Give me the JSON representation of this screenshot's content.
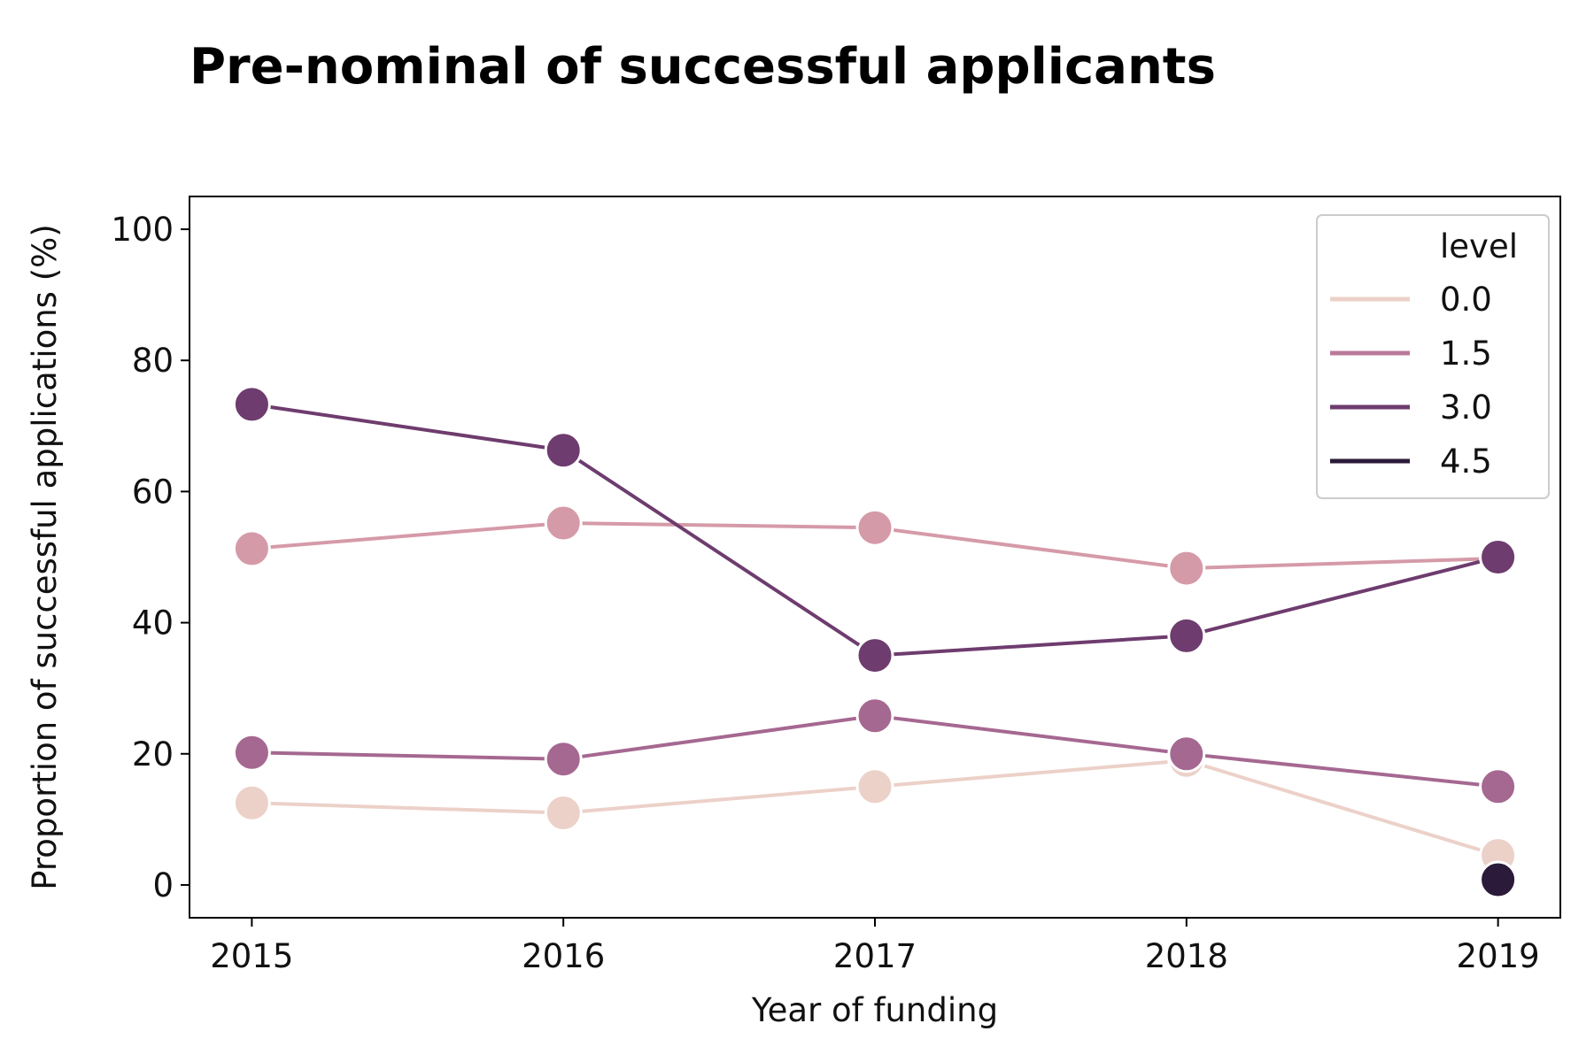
{
  "chart_data": {
    "type": "line",
    "title": "Pre-nominal of successful applicants",
    "xlabel": "Year of funding",
    "ylabel": "Proportion of successful applications (%)",
    "x": [
      2015,
      2016,
      2017,
      2018,
      2019
    ],
    "x_tick_labels": [
      "2015",
      "2016",
      "2017",
      "2018",
      "2019"
    ],
    "xlim": [
      2014.8,
      2019.2
    ],
    "y_ticks": [
      0,
      20,
      40,
      60,
      80,
      100
    ],
    "y_tick_labels": [
      "0",
      "20",
      "40",
      "60",
      "80",
      "100"
    ],
    "ylim": [
      -5,
      105
    ],
    "grid": false,
    "legend": {
      "title": "level",
      "placement": "top-right",
      "entries": [
        {
          "label": "0.0",
          "color": "#ecd1c9"
        },
        {
          "label": "1.5",
          "color": "#b97a9a"
        },
        {
          "label": "3.0",
          "color": "#6e3c6e"
        },
        {
          "label": "4.5",
          "color": "#2b1a3a"
        }
      ]
    },
    "series": [
      {
        "color": "#ecd1c9",
        "values": [
          12.5,
          11.0,
          15.0,
          19.0,
          4.5
        ]
      },
      {
        "color": "#d59aa8",
        "values": [
          51.3,
          55.2,
          54.5,
          48.3,
          49.8
        ]
      },
      {
        "color": "#a56891",
        "values": [
          20.2,
          19.2,
          25.8,
          20.0,
          15.0
        ]
      },
      {
        "color": "#6e3c6e",
        "values": [
          73.3,
          66.3,
          35.0,
          38.0,
          50.0
        ]
      },
      {
        "color": "#2b1a3a",
        "values": [
          null,
          null,
          null,
          null,
          0.8
        ]
      }
    ]
  }
}
